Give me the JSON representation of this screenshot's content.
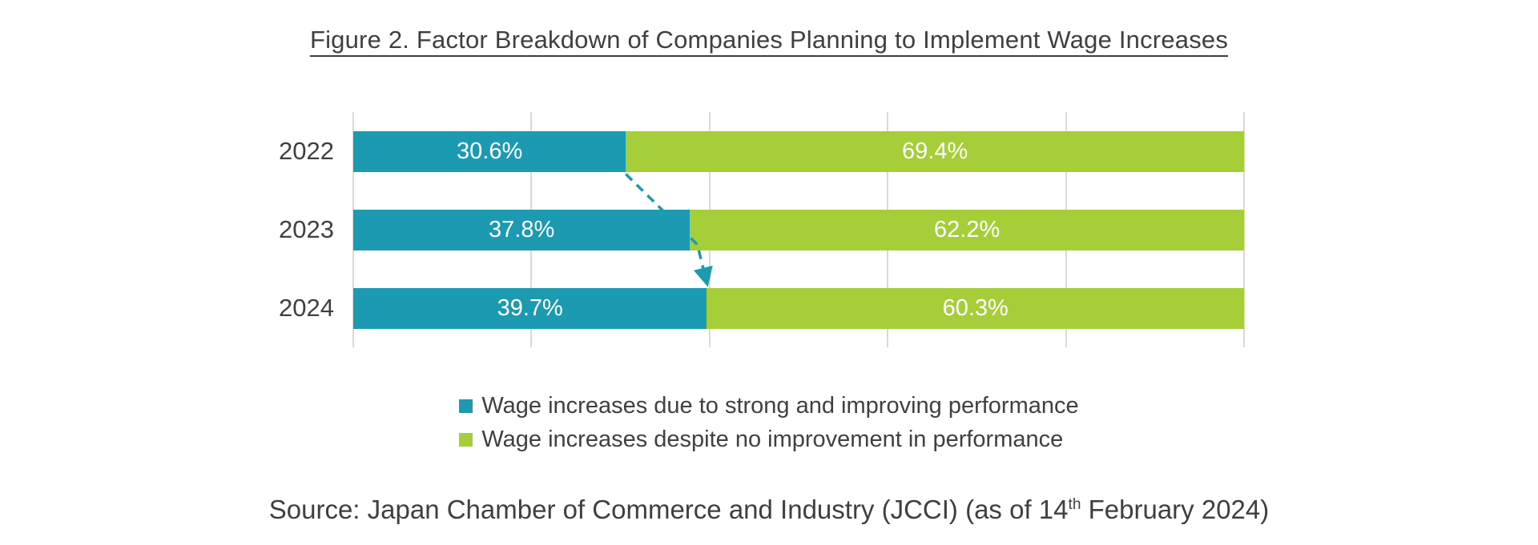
{
  "title": "Figure 2. Factor Breakdown of Companies Planning to Implement Wage Increases",
  "chart_data": {
    "type": "bar",
    "orientation": "horizontal",
    "stacked": true,
    "categories": [
      "2022",
      "2023",
      "2024"
    ],
    "series": [
      {
        "name": "Wage increases due to strong and improving performance",
        "color": "#1c9ab1",
        "values": [
          30.6,
          37.8,
          39.7
        ],
        "labels": [
          "30.6%",
          "37.8%",
          "39.7%"
        ]
      },
      {
        "name": "Wage increases despite no improvement in performance",
        "color": "#a6ce39",
        "values": [
          69.4,
          62.2,
          60.3
        ],
        "labels": [
          "69.4%",
          "62.2%",
          "60.3%"
        ]
      }
    ],
    "xlim": [
      0,
      100
    ],
    "gridlines_percent": [
      0,
      20,
      40,
      60,
      80,
      100
    ],
    "grid": true,
    "tick_labels_visible": false,
    "legend_position": "bottom",
    "annotation": {
      "type": "dashed-arrow",
      "color": "#1c9ab1",
      "from": "end of 2022 first segment (30.6%)",
      "to": "end of 2024 first segment (39.7%)"
    }
  },
  "source": {
    "prefix": "Source: Japan Chamber of Commerce and Industry (JCCI) (as of 14",
    "superscript": "th",
    "suffix": " February 2024)"
  }
}
